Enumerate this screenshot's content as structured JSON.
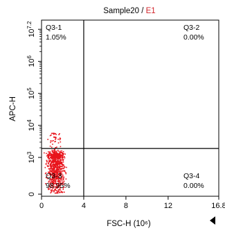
{
  "chart_data": {
    "type": "scatter",
    "title_sample": "Sample20 / ",
    "title_gate": "E1",
    "xlabel": "FSC-H (10⁶)",
    "ylabel": "APC-H",
    "xlim": [
      0,
      16.8
    ],
    "x_ticks": [
      "0",
      "4",
      "8",
      "12",
      "16.8"
    ],
    "x_tick_values": [
      0,
      4,
      8,
      12,
      16.8
    ],
    "y_scale": "biexponential (log)",
    "y_ticks": [
      {
        "value": 0,
        "base": "0",
        "exp": ""
      },
      {
        "value": 1000,
        "base": "10",
        "exp": "3"
      },
      {
        "value": 10000,
        "base": "10",
        "exp": "4"
      },
      {
        "value": 100000,
        "base": "10",
        "exp": "5"
      },
      {
        "value": 1000000,
        "base": "10",
        "exp": "6"
      },
      {
        "value": 10000000,
        "base": "10",
        "exp": "7.2"
      }
    ],
    "gate_x": 4,
    "gate_y": 1900,
    "quadrants": [
      {
        "name": "Q3-1",
        "percent": "1.05%",
        "corner": "top-left"
      },
      {
        "name": "Q3-2",
        "percent": "0.00%",
        "corner": "top-right"
      },
      {
        "name": "Q3-3",
        "percent": "98.95%",
        "corner": "bottom-left"
      },
      {
        "name": "Q3-4",
        "percent": "0.00%",
        "corner": "bottom-right"
      }
    ],
    "population": {
      "x_center": 1.3,
      "x_spread": 0.7,
      "y_center": 800,
      "y_max": 6000,
      "events_upper_left_fraction": 0.0105
    },
    "dot_color": "#e8141c",
    "grid": false
  },
  "colors": {
    "title_gate": "#d2232a",
    "axis": "#000000",
    "gate_line": "#000000"
  }
}
